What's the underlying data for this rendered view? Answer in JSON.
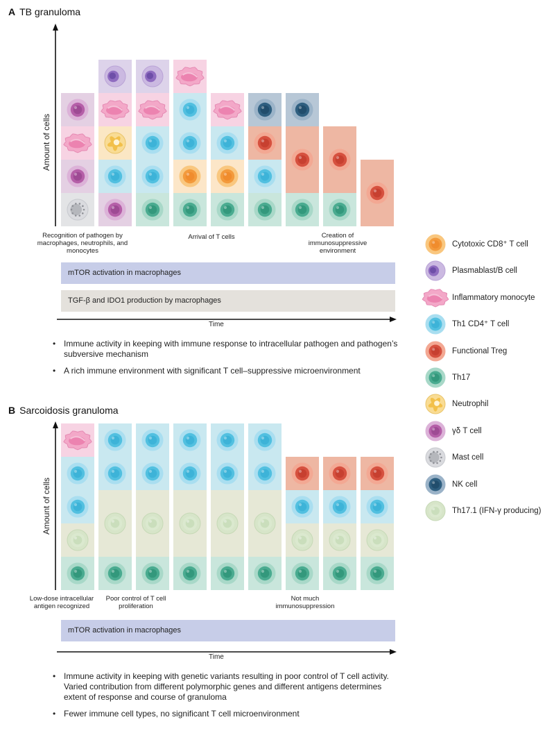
{
  "panelA": {
    "letter": "A",
    "title": "TB granuloma",
    "y_axis_label": "Amount of cells",
    "captions": [
      "Recognition of pathogen by macrophages, neutrophils, and monocytes",
      "Arrival of T cells",
      "Creation of immunosuppressive environment"
    ],
    "bar1": "mTOR activation in macrophages",
    "bar2": "TGF-β and IDO1 production by macrophages",
    "time_label": "Time",
    "bullets": [
      "Immune activity in keeping with immune response to intracellular pathogen and pathogen’s subversive mechanism",
      "A rich immune environment with significant T cell–suppressive microenvironment"
    ],
    "columns": [
      [
        "mast",
        "gd",
        "mono",
        "gd"
      ],
      [
        "gd",
        "th1",
        "neut",
        "mono",
        "plasma"
      ],
      [
        "th17",
        "th1",
        "th1",
        "mono",
        "plasma"
      ],
      [
        "th17",
        "cd8",
        "th1",
        "th1",
        "mono"
      ],
      [
        "th17",
        "cd8",
        "th1",
        "mono"
      ],
      [
        "th17",
        "th1",
        "treg",
        "nk"
      ],
      [
        "th17",
        "treg",
        "treg",
        "nk"
      ],
      [
        "th17",
        "treg",
        "treg"
      ],
      [
        "treg",
        "treg"
      ]
    ]
  },
  "panelB": {
    "letter": "B",
    "title": "Sarcoidosis granuloma",
    "y_axis_label": "Amount of cells",
    "captions": [
      "Low-dose intracellular antigen recognized",
      "Poor control of T cell proliferation",
      "Not much immunosuppression"
    ],
    "bar1": "mTOR activation in macrophages",
    "time_label": "Time",
    "bullets": [
      "Immune activity in keeping with genetic variants resulting in poor control of T cell activity. Varied contribution from different polymorphic genes and different antigens determines extent of response and course of granuloma",
      "Fewer immune cell types, no significant T cell microenvironment"
    ],
    "columns": [
      [
        "th17",
        "th171",
        "th1",
        "th1",
        "mono"
      ],
      [
        "th17",
        "th171",
        "th171",
        "th1",
        "th1"
      ],
      [
        "th17",
        "th171",
        "th171",
        "th1",
        "th1"
      ],
      [
        "th17",
        "th171",
        "th171",
        "th1",
        "th1"
      ],
      [
        "th17",
        "th171",
        "th171",
        "th1",
        "th1"
      ],
      [
        "th17",
        "th171",
        "th171",
        "th1",
        "th1"
      ],
      [
        "th17",
        "th171",
        "th1",
        "treg"
      ],
      [
        "th17",
        "th171",
        "th1",
        "treg"
      ],
      [
        "th17",
        "th171",
        "th1",
        "treg"
      ]
    ]
  },
  "legend": [
    {
      "key": "cd8",
      "label": "Cytotoxic CD8⁺ T cell"
    },
    {
      "key": "plasma",
      "label": "Plasmablast/B cell"
    },
    {
      "key": "mono",
      "label": "Inflammatory monocyte"
    },
    {
      "key": "th1",
      "label": "Th1 CD4⁺ T cell"
    },
    {
      "key": "treg",
      "label": "Functional Treg"
    },
    {
      "key": "th17",
      "label": "Th17"
    },
    {
      "key": "neut",
      "label": "Neutrophil"
    },
    {
      "key": "gd",
      "label": "γδ T cell"
    },
    {
      "key": "mast",
      "label": "Mast cell"
    },
    {
      "key": "nk",
      "label": "NK cell"
    },
    {
      "key": "th171",
      "label": "Th17.1 (IFN-γ producing)"
    }
  ],
  "cell_types": {
    "cd8": {
      "bg": "#fce6c8",
      "outer": "#f9c77f",
      "inner": "#f39a3c",
      "nucleus": "#ee8a2a"
    },
    "plasma": {
      "bg": "#ddd3ea",
      "outer": "#cbb9e1",
      "inner": "#8f6cc0",
      "nucleus": "#6e4ea8"
    },
    "mono": {
      "bg": "#f7d3e3",
      "outer": "#f3a8c8",
      "inner": "#ec83b0",
      "nucleus": "#e06a9c"
    },
    "th1": {
      "bg": "#c9e8f0",
      "outer": "#a9def0",
      "inner": "#52c0e0",
      "nucleus": "#39b0d6"
    },
    "treg": {
      "bg": "#eeb7a3",
      "outer": "#f3a893",
      "inner": "#d6513f",
      "nucleus": "#c43d2e"
    },
    "th17": {
      "bg": "#c9e6dc",
      "outer": "#a8d8c8",
      "inner": "#4aab90",
      "nucleus": "#2f9479"
    },
    "neut": {
      "bg": "#fbe7c4",
      "outer": "#f9dc94",
      "inner": "#f2c04a",
      "nucleus": "#f0d27a"
    },
    "gd": {
      "bg": "#e4d0e3",
      "outer": "#dcb2d8",
      "inner": "#b55fa8",
      "nucleus": "#9a4690"
    },
    "mast": {
      "bg": "#e3e4e6",
      "outer": "#dadbdf",
      "inner": "#b5b7bc",
      "nucleus": "#a3a5ab"
    },
    "nk": {
      "bg": "#b7c7d6",
      "outer": "#9bb3c8",
      "inner": "#2f5f80",
      "nucleus": "#1f4a68"
    },
    "th171": {
      "bg": "#e6e8d6",
      "outer": "#d7e5c9",
      "inner": "#dbe9cf",
      "nucleus": "#c7dcb8"
    }
  }
}
